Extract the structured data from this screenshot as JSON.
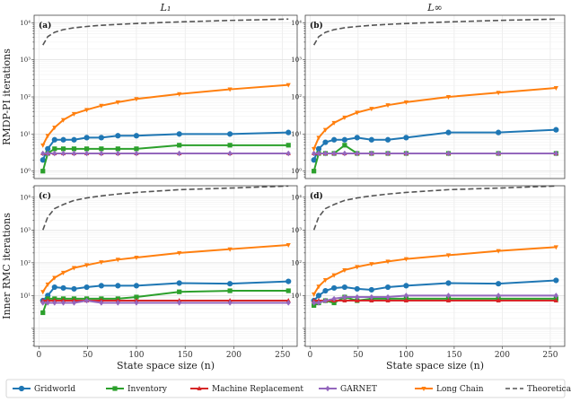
{
  "chart_data": {
    "type": "line",
    "column_titles": [
      "L₁",
      "L∞"
    ],
    "xlabel": "State space size (n)",
    "xlim": [
      -5,
      265
    ],
    "x_ticks": [
      0,
      50,
      100,
      150,
      200,
      250
    ],
    "x": [
      4,
      9,
      16,
      25,
      36,
      49,
      64,
      81,
      100,
      144,
      196,
      256
    ],
    "rows": [
      {
        "ylabel": "RMDP-PI iterations",
        "yscale": "log",
        "ylim_exp": [
          -0.2,
          4.2
        ],
        "y_tick_labels": [
          "10⁰",
          "10¹",
          "10²",
          "10³",
          "10⁴"
        ]
      },
      {
        "ylabel": "Inner RMC iterations",
        "yscale": "log",
        "ylim_exp": [
          -0.55,
          4.35
        ],
        "y_tick_labels": [
          "10¹",
          "10²",
          "10³",
          "10⁴"
        ]
      }
    ],
    "panels": [
      {
        "label": "(a)",
        "series": [
          {
            "name": "Gridworld",
            "values": [
              2,
              4,
              7,
              7,
              7,
              8,
              8,
              9,
              9,
              10,
              10,
              11
            ]
          },
          {
            "name": "Inventory",
            "values": [
              1,
              3,
              4,
              4,
              4,
              4,
              4,
              4,
              4,
              5,
              5,
              5
            ]
          },
          {
            "name": "Machine Replacement",
            "values": [
              3,
              3,
              3,
              3,
              3,
              3,
              3,
              3,
              3,
              3,
              3,
              3
            ]
          },
          {
            "name": "GARNET",
            "values": [
              3,
              3,
              3,
              3,
              3,
              3,
              3,
              3,
              3,
              3,
              3,
              3
            ]
          },
          {
            "name": "Long Chain",
            "values": [
              5,
              9,
              15,
              24,
              35,
              45,
              58,
              72,
              88,
              120,
              160,
              210
            ]
          },
          {
            "name": "Theoretical upper bound",
            "values": [
              2500,
              4200,
              5500,
              6500,
              7300,
              7900,
              8500,
              9000,
              9500,
              10500,
              11500,
              12500
            ]
          }
        ]
      },
      {
        "label": "(b)",
        "series": [
          {
            "name": "Gridworld",
            "values": [
              2,
              4,
              6,
              7,
              7,
              8,
              7,
              7,
              8,
              11,
              11,
              13
            ]
          },
          {
            "name": "Inventory",
            "values": [
              1,
              3,
              3,
              3,
              5,
              3,
              3,
              3,
              3,
              3,
              3,
              3
            ]
          },
          {
            "name": "Machine Replacement",
            "values": [
              3,
              3,
              3,
              3,
              3,
              3,
              3,
              3,
              3,
              3,
              3,
              3
            ]
          },
          {
            "name": "GARNET",
            "values": [
              3,
              3,
              3,
              3,
              3,
              3,
              3,
              3,
              3,
              3,
              3,
              3
            ]
          },
          {
            "name": "Long Chain",
            "values": [
              4,
              8,
              13,
              20,
              28,
              38,
              48,
              60,
              72,
              100,
              130,
              175
            ]
          },
          {
            "name": "Theoretical upper bound",
            "values": [
              2500,
              4200,
              5500,
              6500,
              7300,
              7900,
              8500,
              9000,
              9500,
              10500,
              11500,
              12500
            ]
          }
        ]
      },
      {
        "label": "(c)",
        "series": [
          {
            "name": "Gridworld",
            "values": [
              7,
              10,
              18,
              17,
              16,
              18,
              20,
              20,
              20,
              24,
              23,
              27
            ]
          },
          {
            "name": "Inventory",
            "values": [
              3,
              8,
              8,
              8,
              8,
              8,
              8,
              8,
              9,
              13,
              14,
              14
            ]
          },
          {
            "name": "Machine Replacement",
            "values": [
              7,
              7,
              7,
              7,
              7,
              7,
              7,
              7,
              7,
              7,
              7,
              7
            ]
          },
          {
            "name": "GARNET",
            "values": [
              6,
              6,
              6,
              6,
              6,
              7,
              6,
              6,
              6,
              6,
              6,
              6
            ]
          },
          {
            "name": "Long Chain",
            "values": [
              13,
              22,
              35,
              50,
              70,
              85,
              105,
              125,
              145,
              200,
              260,
              350
            ]
          },
          {
            "name": "Theoretical upper bound",
            "values": [
              1000,
              2500,
              4500,
              6000,
              8000,
              9500,
              11000,
              12500,
              14000,
              17000,
              19000,
              22000
            ]
          }
        ]
      },
      {
        "label": "(d)",
        "series": [
          {
            "name": "Gridworld",
            "values": [
              7,
              10,
              14,
              17,
              18,
              16,
              15,
              18,
              20,
              24,
              23,
              29
            ]
          },
          {
            "name": "Inventory",
            "values": [
              5,
              6,
              7,
              6,
              9,
              7,
              8,
              8,
              8,
              8,
              8,
              8
            ]
          },
          {
            "name": "Machine Replacement",
            "values": [
              7,
              7,
              7,
              7,
              7,
              7,
              7,
              7,
              7,
              7,
              7,
              7
            ]
          },
          {
            "name": "GARNET",
            "values": [
              6,
              6,
              7,
              8,
              9,
              9,
              9,
              9,
              10,
              10,
              10,
              10
            ]
          },
          {
            "name": "Long Chain",
            "values": [
              11,
              19,
              30,
              42,
              60,
              75,
              92,
              110,
              130,
              170,
              230,
              300
            ]
          },
          {
            "name": "Theoretical upper bound",
            "values": [
              1000,
              2500,
              4500,
              6000,
              8000,
              9500,
              11000,
              12500,
              14000,
              17000,
              19000,
              22000
            ]
          }
        ]
      }
    ],
    "series_styles": [
      {
        "name": "Gridworld",
        "color": "#1f77b4",
        "marker": "circle",
        "dashed": false
      },
      {
        "name": "Inventory",
        "color": "#2ca02c",
        "marker": "square",
        "dashed": false
      },
      {
        "name": "Machine Replacement",
        "color": "#d62728",
        "marker": "triangle-up",
        "dashed": false
      },
      {
        "name": "GARNET",
        "color": "#9467bd",
        "marker": "diamond",
        "dashed": false
      },
      {
        "name": "Long Chain",
        "color": "#ff7f0e",
        "marker": "triangle-down",
        "dashed": false
      },
      {
        "name": "Theoretical upper bound",
        "color": "#555555",
        "marker": "none",
        "dashed": true
      }
    ],
    "legend_position": "bottom",
    "grid": true
  }
}
